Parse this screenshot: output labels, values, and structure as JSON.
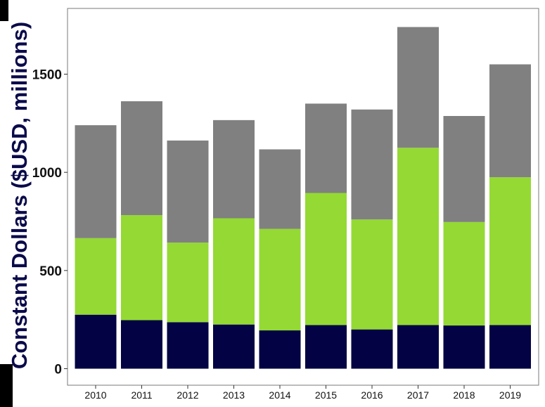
{
  "chart_data": {
    "type": "bar",
    "stacked": true,
    "categories": [
      "2010",
      "2011",
      "2012",
      "2013",
      "2014",
      "2015",
      "2016",
      "2017",
      "2018",
      "2019"
    ],
    "series": [
      {
        "values": [
          275,
          247,
          237,
          225,
          195,
          222,
          200,
          222,
          220,
          222
        ]
      },
      {
        "values": [
          390,
          535,
          405,
          541,
          517,
          673,
          560,
          903,
          527,
          753
        ]
      },
      {
        "values": [
          575,
          580,
          520,
          500,
          405,
          455,
          560,
          615,
          540,
          575
        ]
      }
    ],
    "colors": [
      "#020244",
      "#94d934",
      "#808080"
    ],
    "ylabel": "Constant Dollars ($USD, millions)",
    "xlabel": "",
    "ylim": [
      0,
      1800
    ],
    "yticks": [
      0,
      500,
      1000,
      1500
    ],
    "grid": false,
    "legend": "none"
  }
}
